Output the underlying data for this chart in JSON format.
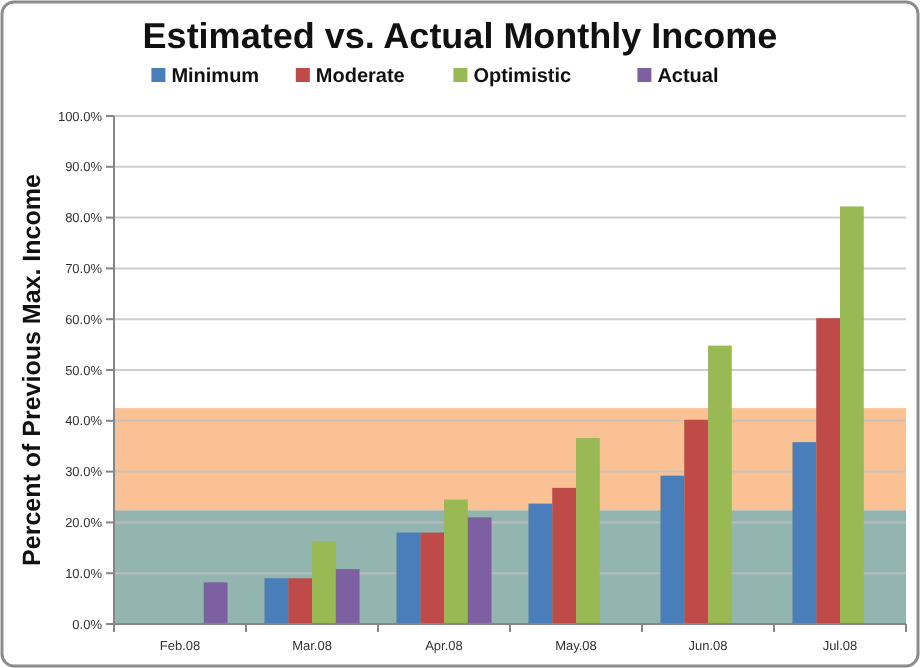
{
  "chart_data": {
    "type": "bar",
    "title": "Estimated vs. Actual Monthly Income",
    "ylabel": "Percent of Previous Max. Income",
    "categories": [
      "Feb.08",
      "Mar.08",
      "Apr.08",
      "May.08",
      "Jun.08",
      "Jul.08"
    ],
    "series": [
      {
        "name": "Minimum",
        "color": "#4a7ebb",
        "values": [
          null,
          9.0,
          18.0,
          23.7,
          29.2,
          35.8
        ]
      },
      {
        "name": "Moderate",
        "color": "#be4b48",
        "values": [
          null,
          9.0,
          18.0,
          26.8,
          40.2,
          60.2
        ]
      },
      {
        "name": "Optimistic",
        "color": "#98b954",
        "values": [
          null,
          16.3,
          24.5,
          36.6,
          54.8,
          82.2
        ]
      },
      {
        "name": "Actual",
        "color": "#7d60a0",
        "values": [
          8.2,
          10.8,
          21.0,
          null,
          null,
          null
        ]
      }
    ],
    "ylim": [
      0,
      100
    ],
    "yticks": [
      {
        "value": 0,
        "label": "0.0%"
      },
      {
        "value": 10,
        "label": "10.0%"
      },
      {
        "value": 20,
        "label": "20.0%"
      },
      {
        "value": 30,
        "label": "30.0%"
      },
      {
        "value": 40,
        "label": "40.0%"
      },
      {
        "value": 50,
        "label": "50.0%"
      },
      {
        "value": 60,
        "label": "60.0%"
      },
      {
        "value": 70,
        "label": "70.0%"
      },
      {
        "value": 80,
        "label": "80.0%"
      },
      {
        "value": 90,
        "label": "90.0%"
      },
      {
        "value": 100,
        "label": "100.0%"
      }
    ],
    "bands": [
      {
        "axis": "y",
        "from": 0,
        "to": 22.4,
        "color": "#93b5b0"
      },
      {
        "axis": "y",
        "from": 22.4,
        "to": 42.5,
        "color": "#f9c194"
      }
    ],
    "grid": "y",
    "legend": "top"
  }
}
